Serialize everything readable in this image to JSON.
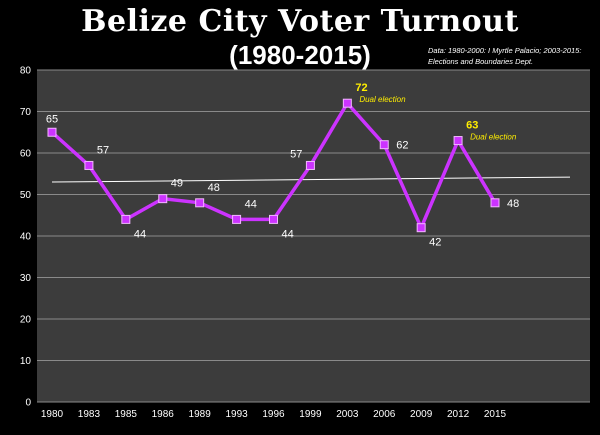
{
  "header": {
    "title": "Belize City Voter Turnout",
    "subtitle": "(1980-2015)",
    "source": "Data: 1980-2000: I Myrtle Palacio; 2003-2015: Elections and Boundaries Dept."
  },
  "chart_data": {
    "type": "line",
    "categories": [
      "1980",
      "1983",
      "1985",
      "1986",
      "1989",
      "1993",
      "1996",
      "1999",
      "2003",
      "2006",
      "2009",
      "2012",
      "2015"
    ],
    "values": [
      65,
      57,
      44,
      49,
      48,
      44,
      44,
      57,
      72,
      62,
      42,
      63,
      48
    ],
    "data_label_positions": [
      "above",
      "above-right",
      "below-right",
      "above-right",
      "above-right",
      "above-right",
      "below-right",
      "above-left",
      "above-right",
      "right",
      "below-right",
      "above-right",
      "right"
    ],
    "highlighted_points": [
      8,
      11
    ],
    "annotations": [
      {
        "index": 8,
        "text": "Dual election"
      },
      {
        "index": 11,
        "text": "Dual election"
      }
    ],
    "trendline": {
      "start": 53,
      "end": 54.2
    },
    "ylim": [
      0,
      80
    ],
    "yticks": [
      0,
      10,
      20,
      30,
      40,
      50,
      60,
      70,
      80
    ],
    "grid": true,
    "xlabel": "",
    "ylabel": "",
    "colors": {
      "background": "#000000",
      "plot_background": "#3c3c3c",
      "gridline": "#8a8a8a",
      "line": "#cc33ff",
      "marker": "#cc33ff",
      "trendline": "#ffffff",
      "highlight_label": "#ffee00"
    }
  }
}
